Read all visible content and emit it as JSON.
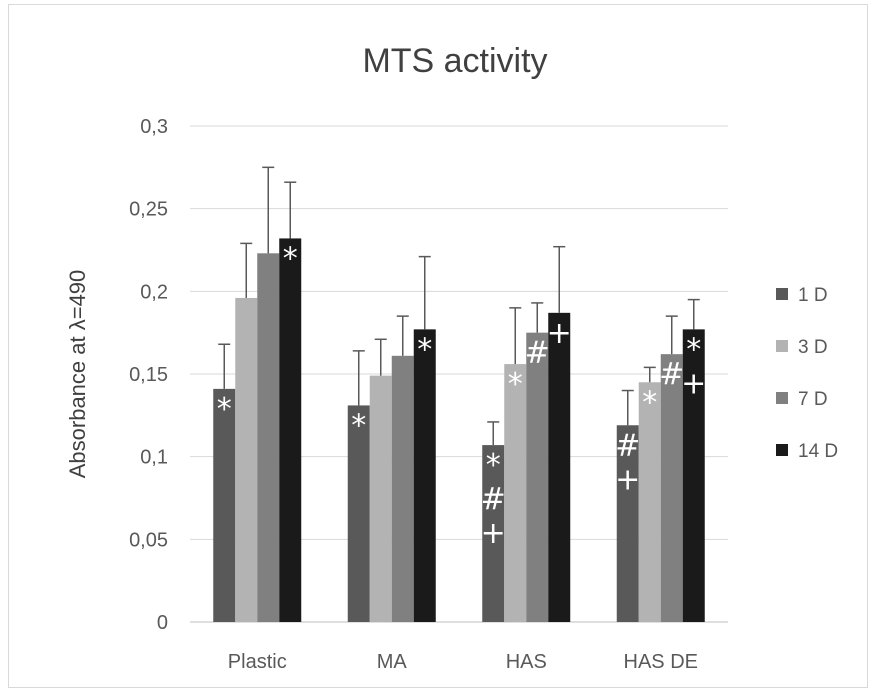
{
  "chart_data": {
    "type": "bar",
    "title": "MTS activity",
    "xlabel": "",
    "ylabel": "Absorbance at λ=490",
    "ylim": [
      0,
      0.3
    ],
    "yticks": [
      "0",
      "0,05",
      "0,1",
      "0,15",
      "0,2",
      "0,25",
      "0,3"
    ],
    "ytick_values": [
      0,
      0.05,
      0.1,
      0.15,
      0.2,
      0.25,
      0.3
    ],
    "grid": true,
    "legend_position": "right",
    "categories": [
      "Plastic",
      "MA",
      "HAS",
      "HAS DE"
    ],
    "series": [
      {
        "name": "1 D",
        "color": "#595959",
        "values": [
          0.141,
          0.131,
          0.107,
          0.119
        ],
        "errors": [
          0.027,
          0.033,
          0.014,
          0.021
        ]
      },
      {
        "name": "3 D",
        "color": "#b3b3b3",
        "values": [
          0.196,
          0.149,
          0.156,
          0.145
        ],
        "errors": [
          0.033,
          0.022,
          0.034,
          0.009
        ]
      },
      {
        "name": "7 D",
        "color": "#808080",
        "values": [
          0.223,
          0.161,
          0.175,
          0.162
        ],
        "errors": [
          0.052,
          0.024,
          0.018,
          0.023
        ]
      },
      {
        "name": "14 D",
        "color": "#1a1a1a",
        "values": [
          0.232,
          0.177,
          0.187,
          0.177
        ],
        "errors": [
          0.034,
          0.044,
          0.04,
          0.018
        ]
      }
    ],
    "significance_marks": [
      {
        "category": 0,
        "series": 0,
        "text": "*"
      },
      {
        "category": 0,
        "series": 3,
        "text": "*"
      },
      {
        "category": 1,
        "series": 0,
        "text": "*"
      },
      {
        "category": 1,
        "series": 3,
        "text": "*"
      },
      {
        "category": 2,
        "series": 0,
        "text": "*"
      },
      {
        "category": 2,
        "series": 0,
        "text": "#"
      },
      {
        "category": 2,
        "series": 0,
        "text": "+"
      },
      {
        "category": 2,
        "series": 1,
        "text": "*"
      },
      {
        "category": 2,
        "series": 2,
        "text": "#"
      },
      {
        "category": 2,
        "series": 3,
        "text": "+"
      },
      {
        "category": 3,
        "series": 0,
        "text": "#"
      },
      {
        "category": 3,
        "series": 0,
        "text": "+"
      },
      {
        "category": 3,
        "series": 1,
        "text": "*"
      },
      {
        "category": 3,
        "series": 2,
        "text": "#"
      },
      {
        "category": 3,
        "series": 3,
        "text": "*"
      },
      {
        "category": 3,
        "series": 3,
        "text": "+"
      }
    ]
  }
}
